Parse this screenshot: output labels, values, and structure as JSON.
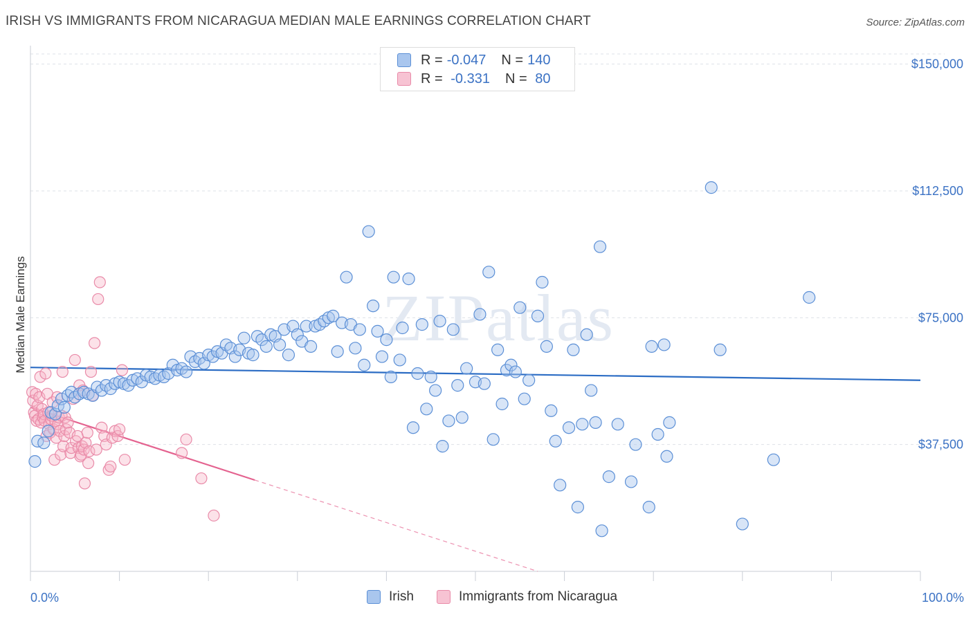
{
  "header": {
    "title": "IRISH VS IMMIGRANTS FROM NICARAGUA MEDIAN MALE EARNINGS CORRELATION CHART",
    "source": "Source: ZipAtlas.com"
  },
  "legend": {
    "rows": [
      {
        "r_label": "R = ",
        "r_value": "-0.047",
        "n_label": "N = ",
        "n_value": "140"
      },
      {
        "r_label": "R = ",
        "r_value": " -0.331",
        "n_label": "N = ",
        "n_value": " 80"
      }
    ]
  },
  "watermark": "ZIPatlas",
  "colors": {
    "irish_fill": "#a9c6ee",
    "irish_stroke": "#5b8fd6",
    "irish_line": "#2b6cc4",
    "nic_fill": "#f7b6c9",
    "nic_stroke": "#e98aa8",
    "nic_line": "#e4628f",
    "axis_text": "#3b72c4"
  },
  "chart_data": {
    "type": "scatter",
    "title": "IRISH VS IMMIGRANTS FROM NICARAGUA MEDIAN MALE EARNINGS CORRELATION CHART",
    "xlabel": "",
    "ylabel": "Median Male Earnings",
    "xlim": [
      0,
      100
    ],
    "ylim": [
      0,
      153000
    ],
    "x_tick_labels": [
      "0.0%",
      "100.0%"
    ],
    "y_ticks": [
      37500,
      75000,
      112500,
      150000
    ],
    "y_tick_labels": [
      "$37,500",
      "$75,000",
      "$112,500",
      "$150,000"
    ],
    "grid": true,
    "legend_position": "top-center",
    "series": [
      {
        "name": "Irish",
        "r": -0.047,
        "n": 140,
        "trend": {
          "x": [
            0,
            100
          ],
          "y": [
            60300,
            56500
          ],
          "dashed_beyond": null
        },
        "points": [
          [
            0.5,
            32500
          ],
          [
            0.8,
            38500
          ],
          [
            1.5,
            38000
          ],
          [
            2.0,
            41500
          ],
          [
            2.3,
            47000
          ],
          [
            2.8,
            46500
          ],
          [
            3.1,
            49000
          ],
          [
            3.5,
            51000
          ],
          [
            3.8,
            48500
          ],
          [
            4.2,
            52000
          ],
          [
            4.6,
            53000
          ],
          [
            5.0,
            51500
          ],
          [
            5.5,
            52500
          ],
          [
            6.0,
            53000
          ],
          [
            6.5,
            52500
          ],
          [
            7.0,
            52000
          ],
          [
            7.5,
            54500
          ],
          [
            8.0,
            53500
          ],
          [
            8.5,
            55000
          ],
          [
            9.0,
            54000
          ],
          [
            9.5,
            55500
          ],
          [
            10.0,
            56000
          ],
          [
            10.5,
            55500
          ],
          [
            11.0,
            55000
          ],
          [
            11.5,
            56500
          ],
          [
            12.0,
            57000
          ],
          [
            12.5,
            56000
          ],
          [
            13.0,
            58000
          ],
          [
            13.5,
            57500
          ],
          [
            14.0,
            57000
          ],
          [
            14.5,
            58000
          ],
          [
            15.0,
            57500
          ],
          [
            15.5,
            58500
          ],
          [
            16.0,
            61000
          ],
          [
            16.5,
            59500
          ],
          [
            17.0,
            60000
          ],
          [
            17.5,
            59000
          ],
          [
            18.0,
            63500
          ],
          [
            18.5,
            62000
          ],
          [
            19.0,
            63000
          ],
          [
            19.5,
            61500
          ],
          [
            20.0,
            64000
          ],
          [
            20.5,
            63500
          ],
          [
            21.0,
            65000
          ],
          [
            21.5,
            64500
          ],
          [
            22.0,
            67000
          ],
          [
            22.5,
            66000
          ],
          [
            23.0,
            63500
          ],
          [
            23.5,
            65500
          ],
          [
            24.0,
            69000
          ],
          [
            24.5,
            64500
          ],
          [
            25.0,
            64000
          ],
          [
            25.5,
            69500
          ],
          [
            26.0,
            68500
          ],
          [
            26.5,
            66500
          ],
          [
            27.0,
            70000
          ],
          [
            27.5,
            69500
          ],
          [
            28.0,
            67000
          ],
          [
            28.5,
            71500
          ],
          [
            29.0,
            64000
          ],
          [
            29.5,
            72500
          ],
          [
            30.0,
            70000
          ],
          [
            30.5,
            68000
          ],
          [
            31.0,
            72500
          ],
          [
            31.5,
            66500
          ],
          [
            32.0,
            72500
          ],
          [
            32.5,
            73000
          ],
          [
            33.0,
            74000
          ],
          [
            33.5,
            75000
          ],
          [
            34.0,
            75500
          ],
          [
            34.5,
            65000
          ],
          [
            35.0,
            73500
          ],
          [
            35.5,
            87000
          ],
          [
            36.0,
            73000
          ],
          [
            36.5,
            66000
          ],
          [
            37.0,
            71500
          ],
          [
            37.5,
            61000
          ],
          [
            38.0,
            100500
          ],
          [
            38.5,
            78500
          ],
          [
            39.0,
            71000
          ],
          [
            39.5,
            63500
          ],
          [
            40.0,
            68500
          ],
          [
            40.5,
            57500
          ],
          [
            40.8,
            87000
          ],
          [
            41.5,
            62500
          ],
          [
            41.8,
            72000
          ],
          [
            42.5,
            86500
          ],
          [
            43.0,
            42500
          ],
          [
            43.5,
            58500
          ],
          [
            44.0,
            73000
          ],
          [
            44.5,
            48000
          ],
          [
            45.0,
            57500
          ],
          [
            45.5,
            53500
          ],
          [
            46.0,
            74000
          ],
          [
            46.3,
            37000
          ],
          [
            47.0,
            44500
          ],
          [
            47.5,
            71500
          ],
          [
            48.0,
            55000
          ],
          [
            48.5,
            45500
          ],
          [
            49.0,
            60000
          ],
          [
            50.0,
            56000
          ],
          [
            50.5,
            76000
          ],
          [
            51.0,
            55500
          ],
          [
            51.5,
            88500
          ],
          [
            52.0,
            39000
          ],
          [
            52.5,
            65500
          ],
          [
            53.0,
            49500
          ],
          [
            53.5,
            59500
          ],
          [
            54.0,
            61000
          ],
          [
            54.5,
            59000
          ],
          [
            55.0,
            78000
          ],
          [
            55.5,
            51000
          ],
          [
            56.0,
            56500
          ],
          [
            57.0,
            75500
          ],
          [
            57.5,
            85500
          ],
          [
            58.0,
            66500
          ],
          [
            58.5,
            47500
          ],
          [
            59.0,
            38500
          ],
          [
            59.5,
            25500
          ],
          [
            60.5,
            42500
          ],
          [
            61.0,
            65500
          ],
          [
            61.5,
            19000
          ],
          [
            62.0,
            43500
          ],
          [
            62.5,
            70000
          ],
          [
            63.0,
            53500
          ],
          [
            63.5,
            44000
          ],
          [
            64.0,
            96000
          ],
          [
            64.2,
            12000
          ],
          [
            65.0,
            28000
          ],
          [
            66.0,
            43500
          ],
          [
            67.5,
            26500
          ],
          [
            68.0,
            37500
          ],
          [
            69.5,
            19000
          ],
          [
            69.8,
            66500
          ],
          [
            70.5,
            40500
          ],
          [
            71.5,
            34000
          ],
          [
            71.8,
            44000
          ],
          [
            71.2,
            67000
          ],
          [
            76.5,
            113500
          ],
          [
            77.5,
            65500
          ],
          [
            80.0,
            14000
          ],
          [
            83.5,
            33000
          ],
          [
            87.5,
            81000
          ]
        ]
      },
      {
        "name": "Immigrants from Nicaragua",
        "r": -0.331,
        "n": 80,
        "trend": {
          "x": [
            0,
            25.2
          ],
          "y": [
            48500,
            27000
          ],
          "dashed_to": {
            "x": 57,
            "y": 0
          }
        },
        "points": [
          [
            0.2,
            53000
          ],
          [
            0.3,
            50500
          ],
          [
            0.4,
            47000
          ],
          [
            0.5,
            46000
          ],
          [
            0.6,
            52500
          ],
          [
            0.7,
            44500
          ],
          [
            0.8,
            49000
          ],
          [
            0.9,
            45000
          ],
          [
            1.0,
            51500
          ],
          [
            1.1,
            57500
          ],
          [
            1.2,
            44000
          ],
          [
            1.3,
            48000
          ],
          [
            1.4,
            45500
          ],
          [
            1.5,
            46500
          ],
          [
            1.6,
            44500
          ],
          [
            1.7,
            58500
          ],
          [
            1.8,
            40000
          ],
          [
            1.9,
            52500
          ],
          [
            2.0,
            47000
          ],
          [
            2.1,
            43500
          ],
          [
            2.2,
            41000
          ],
          [
            2.3,
            45000
          ],
          [
            2.4,
            46000
          ],
          [
            2.5,
            50000
          ],
          [
            2.6,
            42000
          ],
          [
            2.7,
            33000
          ],
          [
            2.8,
            44500
          ],
          [
            2.9,
            39500
          ],
          [
            3.0,
            51500
          ],
          [
            3.1,
            43500
          ],
          [
            3.2,
            45500
          ],
          [
            3.3,
            41500
          ],
          [
            3.4,
            34500
          ],
          [
            3.5,
            46000
          ],
          [
            3.6,
            59000
          ],
          [
            3.7,
            37000
          ],
          [
            3.8,
            40000
          ],
          [
            3.9,
            45500
          ],
          [
            4.0,
            42000
          ],
          [
            4.2,
            44000
          ],
          [
            4.4,
            41000
          ],
          [
            4.5,
            35000
          ],
          [
            4.6,
            36500
          ],
          [
            4.8,
            51000
          ],
          [
            5.0,
            62500
          ],
          [
            5.1,
            38500
          ],
          [
            5.3,
            40000
          ],
          [
            5.4,
            36500
          ],
          [
            5.5,
            55000
          ],
          [
            5.6,
            34000
          ],
          [
            5.7,
            34500
          ],
          [
            5.8,
            37000
          ],
          [
            5.9,
            53500
          ],
          [
            6.0,
            36000
          ],
          [
            6.1,
            26000
          ],
          [
            6.2,
            38000
          ],
          [
            6.4,
            41000
          ],
          [
            6.5,
            32000
          ],
          [
            6.6,
            35500
          ],
          [
            6.8,
            59000
          ],
          [
            7.0,
            52000
          ],
          [
            7.2,
            67500
          ],
          [
            7.4,
            36000
          ],
          [
            7.6,
            80500
          ],
          [
            7.8,
            85500
          ],
          [
            8.0,
            42500
          ],
          [
            8.3,
            40000
          ],
          [
            8.5,
            37500
          ],
          [
            8.8,
            30000
          ],
          [
            9.0,
            31000
          ],
          [
            9.2,
            39500
          ],
          [
            9.5,
            41500
          ],
          [
            9.8,
            40000
          ],
          [
            10.0,
            42000
          ],
          [
            10.3,
            59500
          ],
          [
            10.6,
            33000
          ],
          [
            17.0,
            35000
          ],
          [
            17.5,
            39000
          ],
          [
            19.2,
            27500
          ],
          [
            20.6,
            16500
          ]
        ]
      }
    ]
  }
}
